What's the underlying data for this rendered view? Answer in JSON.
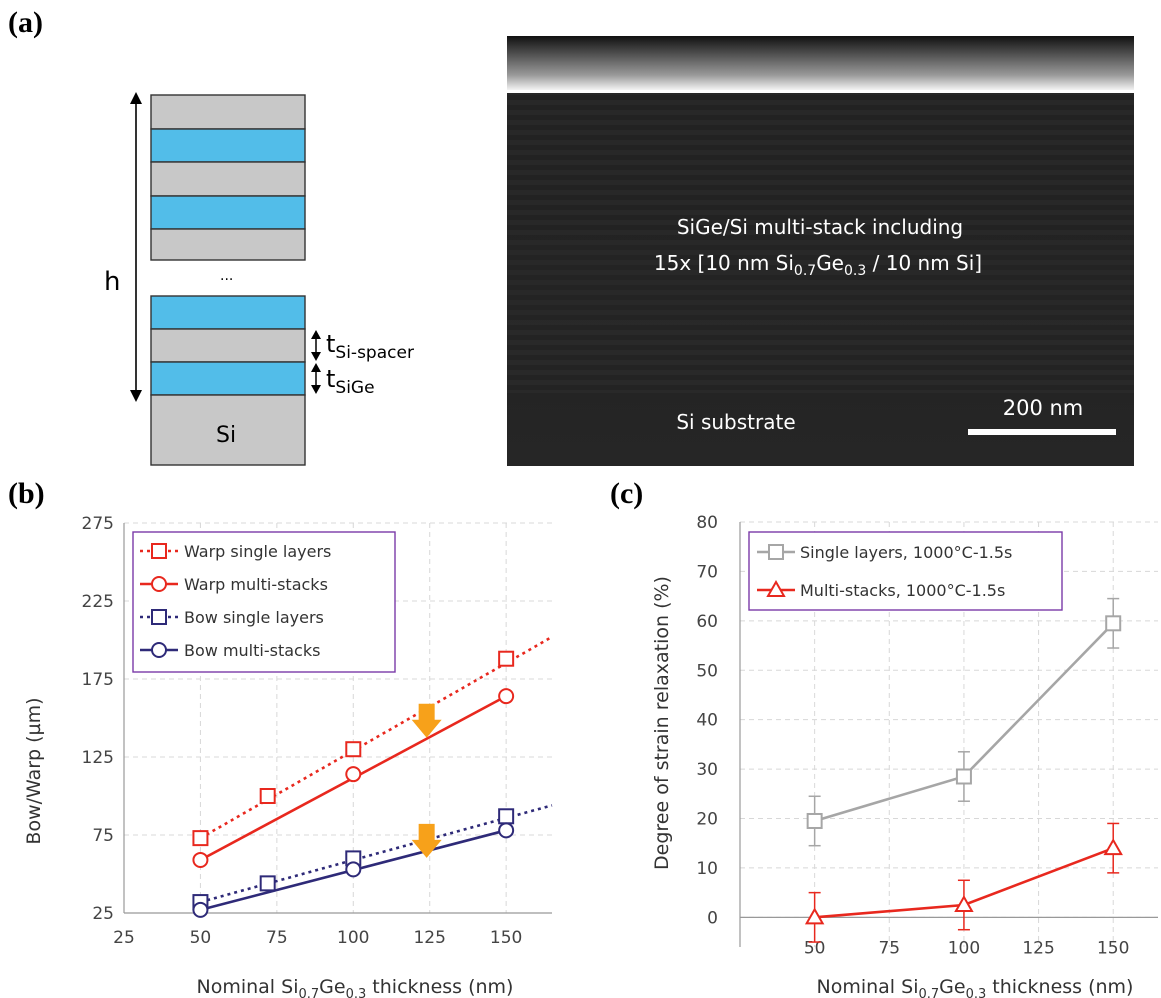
{
  "panels": {
    "a": "(a)",
    "b": "(b)",
    "c": "(c)"
  },
  "schematic": {
    "height_label": "h",
    "ellipsis": "...",
    "t_spacer": "t",
    "t_spacer_sub": "Si-spacer",
    "t_sige": "t",
    "t_sige_sub": "SiGe",
    "substrate_label": "Si",
    "colors": {
      "sige": "#52bde9",
      "si": "#c8c8c8"
    }
  },
  "micrograph": {
    "caption_line1": "SiGe/Si multi-stack including",
    "caption_line2_pre": "15x [10 nm Si",
    "caption_line2_sub1": "0.7",
    "caption_line2_mid": "Ge",
    "caption_line2_sub2": "0.3",
    "caption_line2_post": " / 10 nm Si]",
    "substrate_label": "Si substrate",
    "scale_bar_label": "200 nm"
  },
  "chart_data": [
    {
      "type": "line",
      "panel": "b",
      "xlabel_pre": "Nominal Si",
      "xlabel_sub1": "0.7",
      "xlabel_mid": "Ge",
      "xlabel_sub2": "0.3",
      "xlabel_post": " thickness (nm)",
      "ylabel": "Bow/Warp (µm)",
      "xlim": [
        25,
        165
      ],
      "ylim": [
        25,
        275
      ],
      "xticks": [
        25,
        50,
        75,
        100,
        125,
        150
      ],
      "yticks": [
        25,
        75,
        125,
        175,
        225,
        275
      ],
      "grid": true,
      "legend_position": "top-left",
      "series": [
        {
          "name": "Warp single layers",
          "color": "#e8281e",
          "marker": "square",
          "style": "dotted",
          "x": [
            50,
            72,
            100,
            150
          ],
          "y": [
            73,
            100,
            130,
            188
          ],
          "fit": {
            "x": [
              50,
              165
            ],
            "y": [
              73,
              202
            ]
          }
        },
        {
          "name": "Warp multi-stacks",
          "color": "#e8281e",
          "marker": "circle",
          "style": "solid",
          "x": [
            50,
            100,
            150
          ],
          "y": [
            59,
            114,
            164
          ],
          "fit": {
            "x": [
              50,
              150
            ],
            "y": [
              59,
              164
            ]
          }
        },
        {
          "name": "Bow single layers",
          "color": "#2e2a78",
          "marker": "square",
          "style": "dotted",
          "x": [
            50,
            72,
            100,
            150
          ],
          "y": [
            32,
            44,
            60,
            87
          ],
          "fit": {
            "x": [
              50,
              165
            ],
            "y": [
              32,
              94
            ]
          }
        },
        {
          "name": "Bow multi-stacks",
          "color": "#2e2a78",
          "marker": "circle",
          "style": "solid",
          "x": [
            50,
            100,
            150
          ],
          "y": [
            27,
            53,
            78
          ],
          "fit": {
            "x": [
              50,
              150
            ],
            "y": [
              27,
              78
            ]
          }
        }
      ],
      "annotations": [
        {
          "type": "arrow-down",
          "x": 124,
          "y": 145,
          "color": "#f7a11a"
        },
        {
          "type": "arrow-down",
          "x": 124,
          "y": 68,
          "color": "#f7a11a"
        }
      ]
    },
    {
      "type": "line",
      "panel": "c",
      "xlabel_pre": "Nominal Si",
      "xlabel_sub1": "0.7",
      "xlabel_mid": "Ge",
      "xlabel_sub2": "0.3",
      "xlabel_post": " thickness (nm)",
      "ylabel": "Degree of strain relaxation (%)",
      "xlim": [
        25,
        165
      ],
      "ylim": [
        -6,
        80
      ],
      "xticks": [
        50,
        75,
        100,
        125,
        150
      ],
      "yticks": [
        0,
        10,
        20,
        30,
        40,
        50,
        60,
        70,
        80
      ],
      "grid": true,
      "legend_position": "top-left",
      "series": [
        {
          "name": "Single layers, 1000°C-1.5s",
          "color": "#a6a6a6",
          "marker": "square",
          "x": [
            50,
            100,
            150
          ],
          "y": [
            19.5,
            28.5,
            59.5
          ],
          "err": [
            5,
            5,
            5
          ]
        },
        {
          "name": "Multi-stacks, 1000°C-1.5s",
          "color": "#e8281e",
          "marker": "triangle",
          "x": [
            50,
            100,
            150
          ],
          "y": [
            0,
            2.5,
            14
          ],
          "err": [
            5,
            5,
            5
          ]
        }
      ]
    }
  ]
}
